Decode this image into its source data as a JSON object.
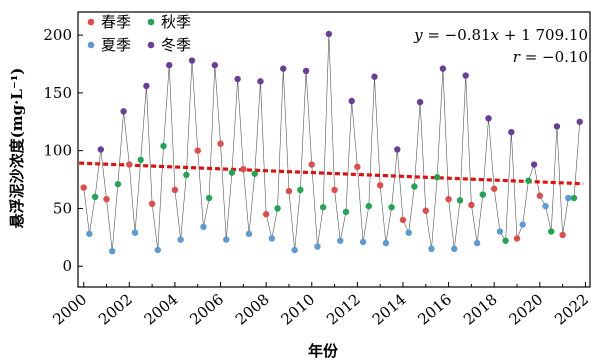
{
  "chart_data": {
    "type": "line",
    "xlabel": "年份",
    "ylabel": "悬浮泥沙浓度(mg·L⁻¹)",
    "xlim": [
      1999.75,
      2022.2
    ],
    "ylim": [
      -18,
      220
    ],
    "xticks": [
      2000,
      2002,
      2004,
      2006,
      2008,
      2010,
      2012,
      2014,
      2016,
      2018,
      2020,
      2022
    ],
    "yticks": [
      0,
      50,
      100,
      150,
      200
    ],
    "grid": false,
    "legend": {
      "position": "top-left",
      "entries": [
        {
          "name": "春季",
          "color": "#e04b4b"
        },
        {
          "name": "夏季",
          "color": "#5b9bd5"
        },
        {
          "name": "秋季",
          "color": "#22a552"
        },
        {
          "name": "冬季",
          "color": "#6a3d9a"
        }
      ]
    },
    "annotation": {
      "equation_y": "y",
      "equation_eq": " = −0.81",
      "equation_x": "x",
      "equation_rest": " + 1 709.10",
      "r_label": "r",
      "r_value": " = −0.10"
    },
    "trend": {
      "slope": -0.81,
      "intercept": 1709.1,
      "color": "#e01010"
    },
    "seasons": [
      "春季",
      "夏季",
      "秋季",
      "冬季"
    ],
    "season_offsets": [
      0.0,
      0.25,
      0.5,
      0.75
    ],
    "years": [
      2000,
      2001,
      2002,
      2003,
      2004,
      2005,
      2006,
      2007,
      2008,
      2009,
      2010,
      2011,
      2012,
      2013,
      2014,
      2015,
      2016,
      2017,
      2018,
      2019,
      2020,
      2021
    ],
    "series": [
      {
        "name": "春季",
        "values": [
          68,
          58,
          88,
          54,
          66,
          100,
          106,
          84,
          45,
          65,
          88,
          66,
          86,
          70,
          40,
          48,
          58,
          53,
          67,
          24,
          61,
          27
        ]
      },
      {
        "name": "夏季",
        "values": [
          28,
          13,
          29,
          14,
          23,
          34,
          23,
          28,
          24,
          14,
          17,
          22,
          21,
          20,
          29,
          15,
          15,
          20,
          30,
          36,
          52,
          59
        ]
      },
      {
        "name": "秋季",
        "values": [
          60,
          71,
          92,
          104,
          79,
          59,
          81,
          80,
          50,
          66,
          51,
          47,
          52,
          51,
          69,
          77,
          57,
          62,
          22,
          74,
          30,
          59
        ]
      },
      {
        "name": "冬季",
        "values": [
          101,
          134,
          156,
          174,
          178,
          174,
          162,
          160,
          171,
          169,
          201,
          143,
          164,
          101,
          142,
          171,
          165,
          128,
          116,
          88,
          121,
          125
        ]
      }
    ]
  }
}
